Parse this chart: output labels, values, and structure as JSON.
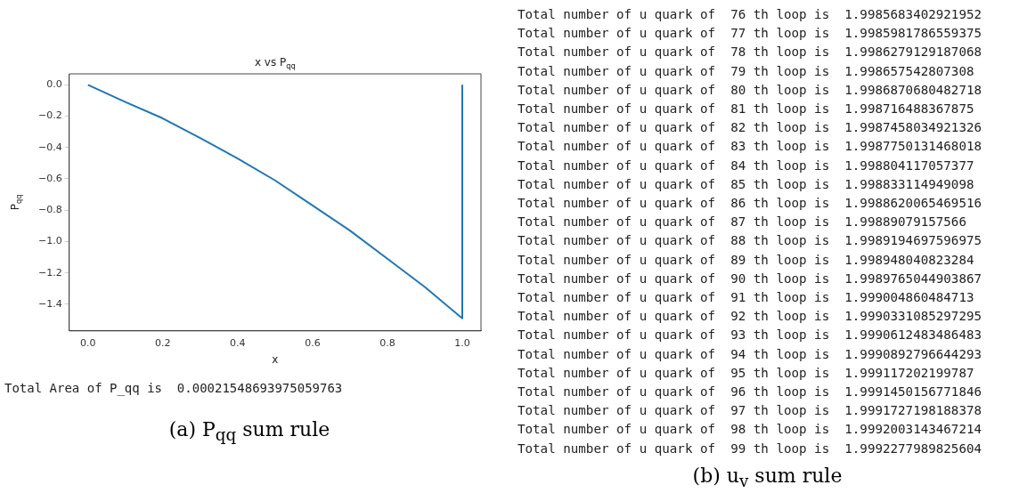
{
  "chart_data": [
    {
      "type": "line",
      "title": "x vs P$_{qq}$",
      "xlabel": "x",
      "ylabel": "P$_{qq}$",
      "series": [
        {
          "color": "#1f77b4",
          "x": [
            0,
            0.1,
            0.2,
            0.3,
            0.4,
            0.5,
            0.6,
            0.7,
            0.8,
            0.9,
            0.99,
            1.0,
            1.0
          ],
          "values": [
            0,
            -0.11,
            -0.214,
            -0.34,
            -0.47,
            -0.61,
            -0.77,
            -0.93,
            -1.11,
            -1.29,
            -1.47,
            -1.49,
            0
          ]
        }
      ],
      "xlim": [
        -0.05,
        1.05
      ],
      "xticks": [
        {
          "value": 0,
          "label": "0.0"
        },
        0.2,
        0.4,
        0.6,
        0.8,
        {
          "value": 1,
          "label": "1.0"
        }
      ],
      "ylim": [
        -1.57,
        0.07
      ],
      "yticks": [
        {
          "value": 0,
          "label": "0.0"
        },
        {
          "value": -0.2,
          "label": "−0.2"
        },
        {
          "value": -0.4,
          "label": "−0.4"
        },
        {
          "value": -0.6,
          "label": "−0.6"
        },
        {
          "value": -0.8,
          "label": "−0.8"
        },
        {
          "value": -1,
          "label": "−1.0"
        },
        {
          "value": -1.2,
          "label": "−1.2"
        },
        {
          "value": -1.4,
          "label": "−1.4"
        }
      ],
      "grid": false,
      "legend": false,
      "line_style": "solid",
      "marker": "none",
      "annotations": [
        "Total Area of P_qq is  0.00021548693975059763",
        "(a) P$_{qq}$ sum rule"
      ]
    },
    {
      "type": "other",
      "annotations": [
        "Total number of u quark of  76 th loop is  1.9985683402921952",
        "Total number of u quark of  77 th loop is  1.9985981786559375",
        "Total number of u quark of  78 th loop is  1.9986279129187068",
        "Total number of u quark of  79 th loop is  1.998657542807308",
        "Total number of u quark of  80 th loop is  1.9986870680482718",
        "Total number of u quark of  81 th loop is  1.998716488367875",
        "Total number of u quark of  82 th loop is  1.9987458034921326",
        "Total number of u quark of  83 th loop is  1.9987750131468018",
        "Total number of u quark of  84 th loop is  1.998804117057377",
        "Total number of u quark of  85 th loop is  1.998833114949098",
        "Total number of u quark of  86 th loop is  1.9988620065469516",
        "Total number of u quark of  87 th loop is  1.99889079157566",
        "Total number of u quark of  88 th loop is  1.9989194697596975",
        "Total number of u quark of  89 th loop is  1.998948040823284",
        "Total number of u quark of  90 th loop is  1.9989765044903867",
        "Total number of u quark of  91 th loop is  1.999004860484713",
        "Total number of u quark of  92 th loop is  1.9990331085297295",
        "Total number of u quark of  93 th loop is  1.9990612483486483",
        "Total number of u quark of  94 th loop is  1.9990892796644293",
        "Total number of u quark of  95 th loop is  1.999117202199787",
        "Total number of u quark of  96 th loop is  1.9991450156771846",
        "Total number of u quark of  97 th loop is  1.9991727198188378",
        "Total number of u quark of  98 th loop is  1.9992003143467214",
        "Total number of u quark of  99 th loop is  1.9992277989825604",
        "(b) u$_{v}$ sum rule"
      ]
    }
  ]
}
